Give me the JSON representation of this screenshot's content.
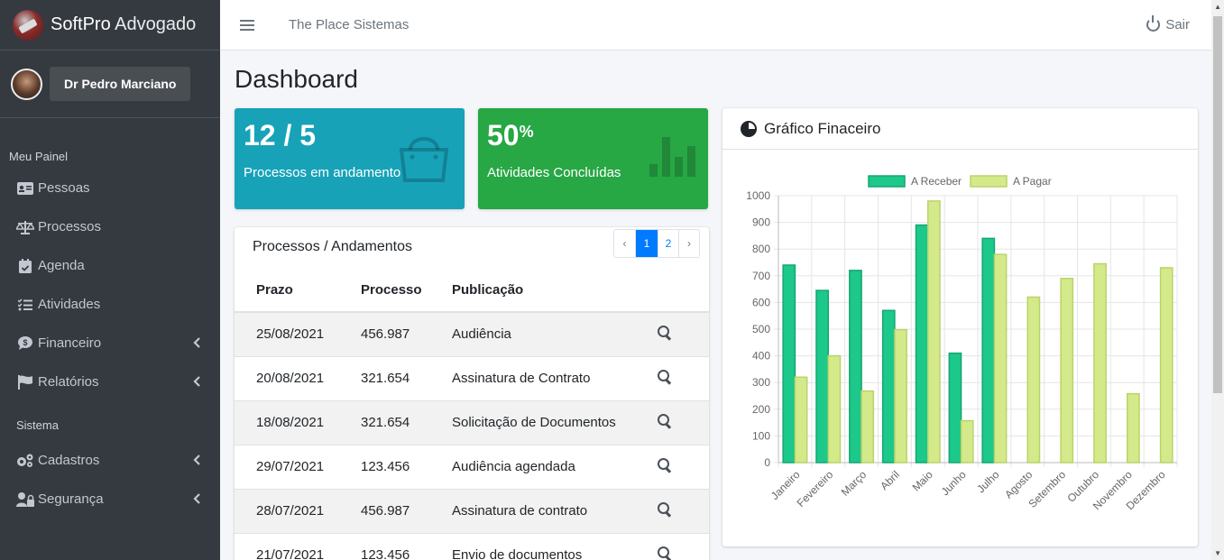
{
  "brand": {
    "name_bold": "SoftPro",
    "name_light": " Advogado"
  },
  "user": {
    "name": "Dr Pedro Marciano"
  },
  "sidebar": {
    "header1": "Meu Painel",
    "header2": "Sistema",
    "items": [
      {
        "label": "Pessoas",
        "icon": "id-card-icon"
      },
      {
        "label": "Processos",
        "icon": "scale-icon"
      },
      {
        "label": "Agenda",
        "icon": "calendar-icon"
      },
      {
        "label": "Atividades",
        "icon": "tasks-icon"
      },
      {
        "label": "Financeiro",
        "icon": "comment-dollar-icon"
      },
      {
        "label": "Relatórios",
        "icon": "flag-icon"
      },
      {
        "label": "Cadastros",
        "icon": "cogs-icon"
      },
      {
        "label": "Segurança",
        "icon": "user-lock-icon"
      }
    ]
  },
  "topbar": {
    "title": "The Place Sistemas",
    "logout": "Sair"
  },
  "page": {
    "title": "Dashboard"
  },
  "stats": [
    {
      "value": "12 / 5",
      "sup": "",
      "label": "Processos em andamento",
      "color": "#17a2b8"
    },
    {
      "value": "50",
      "sup": "%",
      "label": "Atividades Concluídas",
      "color": "#28a745"
    }
  ],
  "processos": {
    "title": "Processos / Andamentos",
    "pager": {
      "prev": "‹",
      "pages": [
        "1",
        "2"
      ],
      "active": "1",
      "next": "›"
    },
    "headers": [
      "Prazo",
      "Processo",
      "Publicação"
    ],
    "rows": [
      [
        "25/08/2021",
        "456.987",
        "Audiência"
      ],
      [
        "20/08/2021",
        "321.654",
        "Assinatura de Contrato"
      ],
      [
        "18/08/2021",
        "321.654",
        "Solicitação de Documentos"
      ],
      [
        "29/07/2021",
        "123.456",
        "Audiência agendada"
      ],
      [
        "28/07/2021",
        "456.987",
        "Assinatura de contrato"
      ],
      [
        "21/07/2021",
        "123.456",
        "Envio de documentos"
      ]
    ]
  },
  "chart_card": {
    "title": "Gráfico Finaceiro"
  },
  "chart_data": {
    "type": "bar",
    "title": "",
    "categories": [
      "Janeiro",
      "Fevereiro",
      "Março",
      "Abril",
      "Maio",
      "Junho",
      "Julho",
      "Agosto",
      "Setembro",
      "Outubro",
      "Novembro",
      "Dezembro"
    ],
    "series": [
      {
        "name": "A Receber",
        "color": "#1cc88a",
        "values": [
          740,
          645,
          720,
          570,
          890,
          410,
          840,
          null,
          null,
          null,
          null,
          null
        ]
      },
      {
        "name": "A Pagar",
        "color": "#d4ea8a",
        "values": [
          320,
          400,
          268,
          498,
          980,
          157,
          780,
          620,
          690,
          745,
          258,
          730
        ]
      }
    ],
    "ylim": [
      0,
      1000
    ],
    "yticks": [
      0,
      100,
      200,
      300,
      400,
      500,
      600,
      700,
      800,
      900,
      1000
    ],
    "legend": "top",
    "grid": true
  }
}
